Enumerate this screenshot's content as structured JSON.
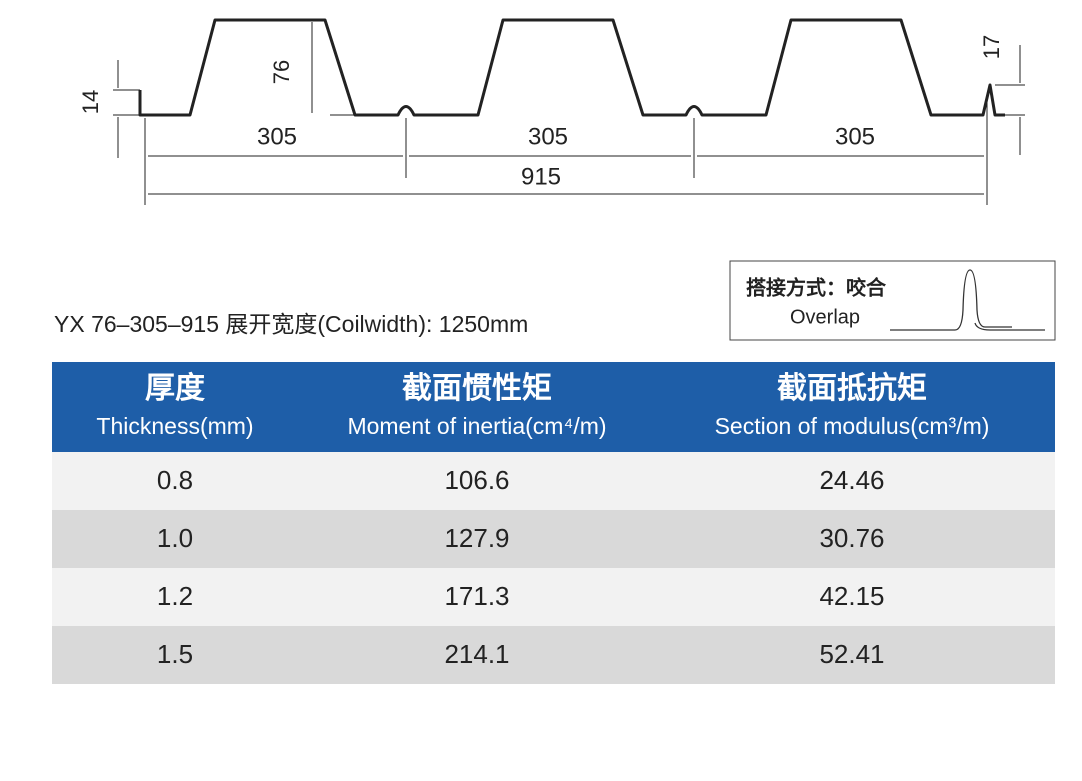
{
  "profile": {
    "dims": {
      "lip_left": "14",
      "rib_height": "76",
      "pitch": [
        "305",
        "305",
        "305"
      ],
      "total": "915",
      "lip_right": "17"
    }
  },
  "spec": "YX 76–305–915  展开宽度(Coilwidth): 1250mm",
  "overlap": {
    "title": "搭接方式：咬合",
    "label": "Overlap"
  },
  "table": {
    "header": [
      [
        "厚度",
        "Thickness(mm)"
      ],
      [
        "截面惯性矩",
        "Moment of inertia(cm⁴/m)"
      ],
      [
        "截面抵抗矩",
        "Section of modulus(cm³/m)"
      ]
    ],
    "rows": [
      [
        "0.8",
        "106.6",
        "24.46"
      ],
      [
        "1.0",
        "127.9",
        "30.76"
      ],
      [
        "1.2",
        "171.3",
        "42.15"
      ],
      [
        "1.5",
        "214.1",
        "52.41"
      ]
    ]
  }
}
